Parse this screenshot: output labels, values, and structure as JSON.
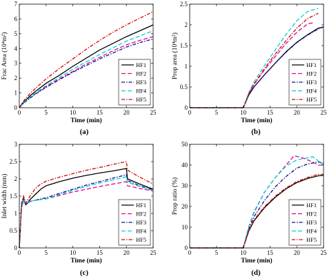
{
  "chart_data": [
    {
      "type": "line",
      "panel_label": "(a)",
      "xlabel": "Time (min)",
      "ylabel": "Frac Area (10⁴m²)",
      "xlim": [
        0,
        25
      ],
      "ylim": [
        0,
        7
      ],
      "xticks": [
        "0",
        "5",
        "10",
        "15",
        "20",
        "25"
      ],
      "yticks": [
        "0",
        "1",
        "2",
        "3",
        "4",
        "5",
        "6",
        "7"
      ],
      "grid": false,
      "legend": "bottom-right",
      "series": [
        {
          "name": "HF1",
          "color": "#000000",
          "dash": "solid",
          "x": [
            0,
            0.5,
            1,
            2,
            3,
            5,
            7.5,
            10,
            12.5,
            15,
            17.5,
            20,
            22.5,
            25
          ],
          "y": [
            0,
            0.25,
            0.45,
            0.8,
            1.1,
            1.65,
            2.2,
            2.8,
            3.35,
            3.9,
            4.35,
            4.8,
            5.2,
            5.6
          ]
        },
        {
          "name": "HF2",
          "color": "#e6008c",
          "dash": "dash",
          "x": [
            0,
            0.5,
            1,
            2,
            3,
            5,
            7.5,
            10,
            12.5,
            15,
            17.5,
            20,
            22.5,
            25
          ],
          "y": [
            0,
            0.2,
            0.38,
            0.68,
            0.95,
            1.42,
            1.95,
            2.45,
            2.95,
            3.4,
            3.85,
            4.25,
            4.55,
            4.8
          ]
        },
        {
          "name": "HF3",
          "color": "#0a0a8c",
          "dash": "dashdot",
          "x": [
            0,
            0.5,
            1,
            2,
            3,
            5,
            7.5,
            10,
            12.5,
            15,
            17.5,
            20,
            22.5,
            25
          ],
          "y": [
            0,
            0.2,
            0.36,
            0.65,
            0.92,
            1.38,
            1.9,
            2.4,
            2.85,
            3.3,
            3.7,
            4.1,
            4.4,
            4.65
          ]
        },
        {
          "name": "HF4",
          "color": "#00d0d0",
          "dash": "dash",
          "x": [
            0,
            0.5,
            1,
            2,
            3,
            5,
            7.5,
            10,
            12.5,
            15,
            17.5,
            20,
            22.5,
            25
          ],
          "y": [
            0,
            0.22,
            0.4,
            0.72,
            1.0,
            1.5,
            2.05,
            2.6,
            3.1,
            3.6,
            4.05,
            4.5,
            4.85,
            5.2
          ]
        },
        {
          "name": "HF5",
          "color": "#d40000",
          "dash": "dashdot",
          "x": [
            0,
            0.5,
            1,
            2,
            3,
            5,
            7.5,
            10,
            12.5,
            15,
            17.5,
            20,
            22.5,
            25
          ],
          "y": [
            0,
            0.3,
            0.55,
            0.95,
            1.3,
            1.95,
            2.65,
            3.3,
            3.95,
            4.55,
            5.1,
            5.6,
            6.05,
            6.5
          ]
        }
      ]
    },
    {
      "type": "line",
      "panel_label": "(b)",
      "xlabel": "Time (min)",
      "ylabel": "Prop area (10⁴m²)",
      "xlim": [
        0,
        25
      ],
      "ylim": [
        0,
        2.5
      ],
      "xticks": [
        "0",
        "5",
        "10",
        "15",
        "20",
        "25"
      ],
      "yticks": [
        "0",
        "0.5",
        "1",
        "1.5",
        "2",
        "2.5"
      ],
      "grid": false,
      "legend": "bottom-right",
      "series": [
        {
          "name": "HF1",
          "color": "#000000",
          "dash": "solid",
          "x": [
            0,
            10,
            11,
            12,
            14,
            16,
            18,
            20,
            22,
            24,
            25
          ],
          "y": [
            0,
            0,
            0.3,
            0.5,
            0.8,
            1.08,
            1.35,
            1.58,
            1.76,
            1.92,
            1.95
          ]
        },
        {
          "name": "HF2",
          "color": "#e6008c",
          "dash": "dash",
          "x": [
            0,
            10,
            11,
            12,
            14,
            16,
            18,
            20,
            22,
            23
          ],
          "y": [
            0,
            0,
            0.33,
            0.56,
            0.92,
            1.24,
            1.55,
            1.82,
            2.02,
            2.05
          ]
        },
        {
          "name": "HF3",
          "color": "#0a0a8c",
          "dash": "dashdot",
          "x": [
            0,
            10,
            11,
            12,
            14,
            16,
            18,
            20,
            22,
            24,
            25
          ],
          "y": [
            0,
            0,
            0.3,
            0.5,
            0.8,
            1.08,
            1.34,
            1.57,
            1.75,
            1.9,
            1.95
          ]
        },
        {
          "name": "HF4",
          "color": "#00d0d0",
          "dash": "dash",
          "x": [
            0,
            10,
            11,
            12,
            14,
            16,
            18,
            20,
            22,
            24
          ],
          "y": [
            0,
            0,
            0.36,
            0.62,
            1.02,
            1.4,
            1.77,
            2.1,
            2.32,
            2.4
          ]
        },
        {
          "name": "HF5",
          "color": "#d40000",
          "dash": "dashdot",
          "x": [
            0,
            10,
            11,
            12,
            14,
            16,
            18,
            20,
            22,
            24
          ],
          "y": [
            0,
            0,
            0.33,
            0.57,
            0.95,
            1.3,
            1.62,
            1.92,
            2.15,
            2.28
          ]
        }
      ]
    },
    {
      "type": "line",
      "panel_label": "(c)",
      "xlabel": "Time (min)",
      "ylabel": "Inlet width (mm)",
      "xlim": [
        0,
        25
      ],
      "ylim": [
        0,
        3
      ],
      "xticks": [
        "0",
        "5",
        "10",
        "15",
        "20",
        "25"
      ],
      "yticks": [
        "0",
        "0.5",
        "1",
        "1.5",
        "2",
        "2.5",
        "3"
      ],
      "grid": false,
      "legend": "bottom-right",
      "series": [
        {
          "name": "HF1",
          "color": "#000000",
          "dash": "solid",
          "x": [
            0,
            0.4,
            0.8,
            1.2,
            2,
            3,
            4,
            5,
            7.5,
            10,
            12.5,
            15,
            17.5,
            20,
            20.2,
            22.5,
            25
          ],
          "y": [
            0,
            1.2,
            1.45,
            1.25,
            1.4,
            1.55,
            1.7,
            1.8,
            1.92,
            2.02,
            2.1,
            2.17,
            2.23,
            2.3,
            2.0,
            1.85,
            1.7
          ]
        },
        {
          "name": "HF2",
          "color": "#e6008c",
          "dash": "dash",
          "x": [
            0,
            0.4,
            0.8,
            1.2,
            2,
            3,
            4,
            5,
            7.5,
            10,
            12.5,
            15,
            17.5,
            20,
            20.2,
            22.5,
            25
          ],
          "y": [
            0,
            1.15,
            1.4,
            1.25,
            1.35,
            1.38,
            1.4,
            1.42,
            1.52,
            1.62,
            1.7,
            1.78,
            1.85,
            1.92,
            1.8,
            1.72,
            1.65
          ]
        },
        {
          "name": "HF3",
          "color": "#0a0a8c",
          "dash": "dashdot",
          "x": [
            0,
            0.4,
            0.8,
            1.2,
            2,
            3,
            4,
            5,
            7.5,
            10,
            12.5,
            15,
            17.5,
            20,
            20.2,
            22.5,
            25
          ],
          "y": [
            0,
            1.15,
            1.4,
            1.25,
            1.35,
            1.38,
            1.42,
            1.45,
            1.58,
            1.7,
            1.82,
            1.92,
            2.02,
            2.12,
            1.95,
            1.8,
            1.68
          ]
        },
        {
          "name": "HF4",
          "color": "#00d0d0",
          "dash": "dash",
          "x": [
            0,
            0.4,
            0.8,
            1.2,
            2,
            3,
            4,
            5,
            7.5,
            10,
            12.5,
            15,
            17.5,
            20,
            20.2,
            22.5,
            25
          ],
          "y": [
            0,
            1.2,
            1.42,
            1.28,
            1.36,
            1.38,
            1.4,
            1.42,
            1.55,
            1.67,
            1.78,
            1.88,
            1.97,
            2.06,
            1.9,
            1.78,
            1.66
          ]
        },
        {
          "name": "HF5",
          "color": "#d40000",
          "dash": "dashdot",
          "x": [
            0,
            0.4,
            0.8,
            1.2,
            2,
            3,
            4,
            5,
            7.5,
            10,
            12.5,
            15,
            17.5,
            20,
            20.2,
            22.5,
            25
          ],
          "y": [
            0,
            1.3,
            1.5,
            1.3,
            1.5,
            1.72,
            1.85,
            1.93,
            2.05,
            2.15,
            2.25,
            2.33,
            2.42,
            2.5,
            2.25,
            2.05,
            1.85
          ]
        }
      ]
    },
    {
      "type": "line",
      "panel_label": "(d)",
      "xlabel": "Time (min)",
      "ylabel": "Prop ratio (%)",
      "xlim": [
        0,
        25
      ],
      "ylim": [
        0,
        50
      ],
      "xticks": [
        "0",
        "5",
        "10",
        "15",
        "20",
        "25"
      ],
      "yticks": [
        "0",
        "10",
        "20",
        "30",
        "40",
        "50"
      ],
      "grid": false,
      "legend": "bottom-right",
      "series": [
        {
          "name": "HF1",
          "color": "#000000",
          "dash": "solid",
          "x": [
            0,
            10,
            11,
            12,
            14,
            16,
            18,
            20,
            22,
            24,
            25
          ],
          "y": [
            0,
            0,
            8,
            13,
            19.5,
            24.5,
            28.5,
            31.5,
            33.5,
            34.8,
            35
          ]
        },
        {
          "name": "HF2",
          "color": "#e6008c",
          "dash": "dash",
          "x": [
            0,
            10,
            11,
            12,
            14,
            16,
            18,
            19.5,
            21,
            22.5,
            24,
            25
          ],
          "y": [
            0,
            0,
            10,
            17,
            27,
            34,
            40,
            44.5,
            43.5,
            42,
            40,
            40
          ]
        },
        {
          "name": "HF3",
          "color": "#0a0a8c",
          "dash": "dashdot",
          "x": [
            0,
            10,
            11,
            12,
            14,
            16,
            18,
            20,
            22,
            24,
            25
          ],
          "y": [
            0,
            0,
            9,
            15,
            23,
            29.5,
            34.5,
            38.5,
            40.5,
            41.5,
            41
          ]
        },
        {
          "name": "HF4",
          "color": "#00d0d0",
          "dash": "dash",
          "x": [
            0,
            10,
            11,
            12,
            14,
            16,
            18,
            20,
            22,
            23,
            24,
            25
          ],
          "y": [
            0,
            0,
            10,
            17.5,
            27,
            34,
            39.5,
            42.5,
            43.5,
            44,
            42,
            40
          ]
        },
        {
          "name": "HF5",
          "color": "#d40000",
          "dash": "dashdot",
          "x": [
            0,
            10,
            11,
            12,
            14,
            16,
            18,
            20,
            22,
            24,
            25
          ],
          "y": [
            0,
            0,
            8.5,
            13.5,
            20,
            25,
            29,
            32,
            34,
            35.5,
            35.5
          ]
        }
      ]
    }
  ]
}
